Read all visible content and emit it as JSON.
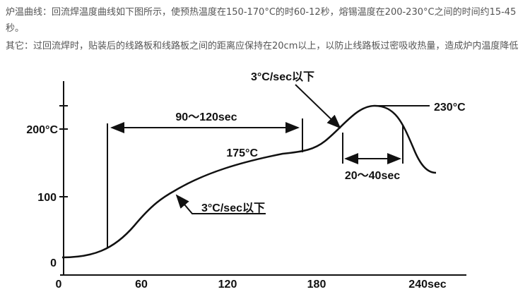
{
  "paragraphs": [
    "炉温曲线：回流焊温度曲线如下图所示，使预热温度在150-170°C的时60-12秒，熔锡温度在200-230°C之间的时间约15-45秒。",
    "其它：过回流焊时，贴装后的线路板和线路板之间的距离应保持在20cm以上，以防止线路板过密吸收热量，造成炉内温度降低"
  ],
  "diagram": {
    "y_labels": [
      "200°C",
      "100",
      "0"
    ],
    "x_labels": [
      "0",
      "60",
      "120",
      "180",
      "240sec"
    ],
    "annotations": {
      "preheat_time": "90～120sec",
      "preheat_temp": "175°C",
      "peak_temp": "230°C",
      "reflow_time": "20～40sec",
      "rate_top": "3°C/sec以下",
      "rate_bottom": "3°C/sec以下"
    }
  }
}
